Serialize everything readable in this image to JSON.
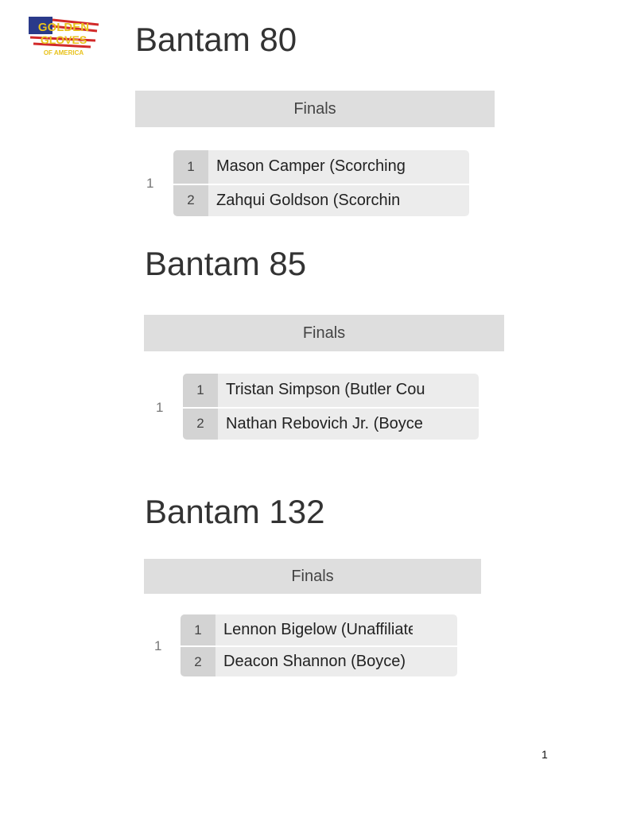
{
  "logo": {
    "text_lines": [
      "GOLDEN",
      "GLOVES",
      "OF AMERICA"
    ],
    "colors": {
      "gold": "#e8c21c",
      "red": "#d22a2a",
      "blue": "#2a3a8a"
    }
  },
  "sections": [
    {
      "title": "Bantam 80",
      "round": "Finals",
      "bout": "1",
      "competitors": [
        {
          "seed": "1",
          "name": "Mason Camper (Scorching"
        },
        {
          "seed": "2",
          "name": "Zahqui Goldson (Scorchin"
        }
      ]
    },
    {
      "title": "Bantam 85",
      "round": "Finals",
      "bout": "1",
      "competitors": [
        {
          "seed": "1",
          "name": "Tristan Simpson (Butler Cou"
        },
        {
          "seed": "2",
          "name": "Nathan Rebovich Jr. (Boyce"
        }
      ]
    },
    {
      "title": "Bantam 132",
      "round": "Finals",
      "bout": "1",
      "competitors": [
        {
          "seed": "1",
          "name": "Lennon Bigelow (Unaffiliated"
        },
        {
          "seed": "2",
          "name": "Deacon Shannon (Boyce)"
        }
      ]
    }
  ],
  "page_number": "1"
}
